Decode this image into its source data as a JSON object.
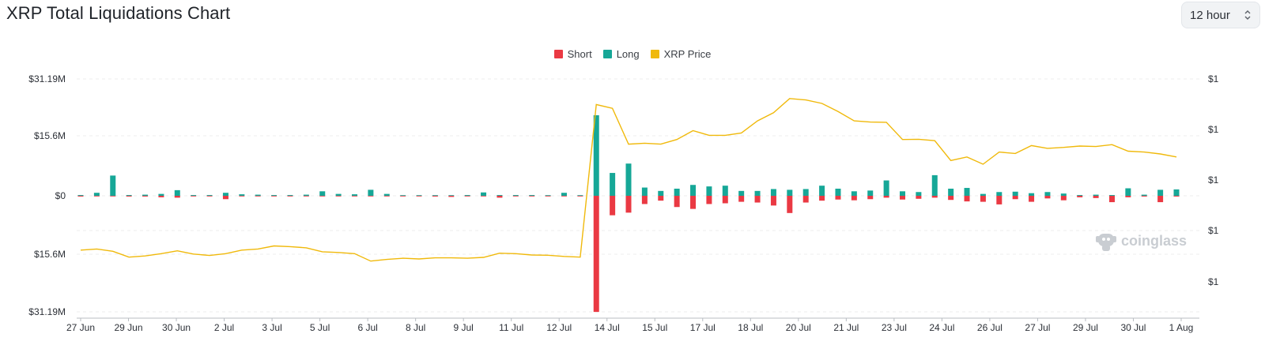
{
  "header": {
    "title": "XRP Total Liquidations Chart",
    "interval": "12 hour"
  },
  "watermark": "coinglass",
  "colors": {
    "short": "#ea3943",
    "long": "#16a797",
    "price": "#f0b90b",
    "grid": "#ececec"
  },
  "chart_data": {
    "type": "bar",
    "title": "XRP Total Liquidations Chart",
    "legend": [
      "Short",
      "Long",
      "XRP Price"
    ],
    "legend_position": "top-center",
    "grid": true,
    "y_left_ticks": [
      "$31.19M",
      "$15.6M",
      "$0",
      "$15.6M",
      "$31.19M"
    ],
    "y_left_range": [
      -31.19,
      31.19
    ],
    "y_right_ticks": [
      "$1",
      "$1",
      "$1",
      "$1",
      "$1"
    ],
    "x_tick_labels": [
      "27 Jun",
      "29 Jun",
      "30 Jun",
      "2 Jul",
      "3 Jul",
      "5 Jul",
      "6 Jul",
      "8 Jul",
      "9 Jul",
      "11 Jul",
      "12 Jul",
      "14 Jul",
      "15 Jul",
      "17 Jul",
      "18 Jul",
      "20 Jul",
      "21 Jul",
      "23 Jul",
      "24 Jul",
      "26 Jul",
      "27 Jul",
      "29 Jul",
      "30 Jul",
      "1 Aug"
    ],
    "series": [
      {
        "name": "Long",
        "unit": "$M",
        "values": [
          0.2,
          0.8,
          5.4,
          0.2,
          0.3,
          0.5,
          1.5,
          0.2,
          0.2,
          0.8,
          0.4,
          0.3,
          0.2,
          0.2,
          0.3,
          1.2,
          0.5,
          0.4,
          1.6,
          0.5,
          0.1,
          0.1,
          0.1,
          0.1,
          0.2,
          0.9,
          0.2,
          0.2,
          0.2,
          0.1,
          0.8,
          0.1,
          21.5,
          6.1,
          8.6,
          2.2,
          1.3,
          1.9,
          2.9,
          2.5,
          2.7,
          1.3,
          1.3,
          1.8,
          1.6,
          1.8,
          2.7,
          1.9,
          1.2,
          1.4,
          4.1,
          1.2,
          1.0,
          5.5,
          1.9,
          2.1,
          0.5,
          1.0,
          1.1,
          0.7,
          1.0,
          0.6,
          0.2,
          0.3,
          0.2,
          2.0,
          0.3,
          1.6,
          1.7
        ]
      },
      {
        "name": "Short",
        "unit": "$M",
        "values": [
          0.2,
          0.1,
          0.1,
          0.2,
          0.2,
          0.4,
          0.5,
          0.1,
          0.1,
          0.9,
          0.1,
          0.1,
          0.1,
          0.1,
          0.1,
          0.1,
          0.1,
          0.1,
          0.1,
          0.1,
          0.1,
          0.1,
          0.2,
          0.3,
          0.1,
          0.1,
          0.5,
          0.1,
          0.1,
          0.1,
          0.1,
          0.1,
          31.0,
          5.2,
          4.5,
          2.2,
          1.3,
          3.0,
          3.5,
          2.2,
          2.0,
          1.6,
          1.8,
          2.6,
          4.6,
          1.8,
          1.3,
          1.0,
          1.2,
          0.9,
          0.5,
          1.0,
          0.8,
          0.5,
          1.1,
          1.5,
          1.6,
          2.3,
          0.9,
          1.6,
          0.7,
          1.2,
          0.4,
          0.6,
          1.7,
          0.4,
          0.2,
          1.7,
          0.2
        ]
      },
      {
        "name": "XRP Price",
        "unit": "relative",
        "values": [
          0.265,
          0.27,
          0.26,
          0.235,
          0.24,
          0.25,
          0.262,
          0.248,
          0.242,
          0.25,
          0.265,
          0.27,
          0.283,
          0.28,
          0.275,
          0.258,
          0.255,
          0.25,
          0.218,
          0.225,
          0.23,
          0.227,
          0.232,
          0.232,
          0.23,
          0.234,
          0.252,
          0.25,
          0.244,
          0.243,
          0.238,
          0.235,
          0.89,
          0.874,
          0.72,
          0.724,
          0.72,
          0.74,
          0.778,
          0.758,
          0.758,
          0.768,
          0.82,
          0.855,
          0.916,
          0.91,
          0.895,
          0.86,
          0.82,
          0.815,
          0.814,
          0.74,
          0.741,
          0.735,
          0.65,
          0.665,
          0.634,
          0.686,
          0.68,
          0.714,
          0.702,
          0.706,
          0.712,
          0.71,
          0.718,
          0.69,
          0.686,
          0.678,
          0.665
        ]
      }
    ]
  }
}
